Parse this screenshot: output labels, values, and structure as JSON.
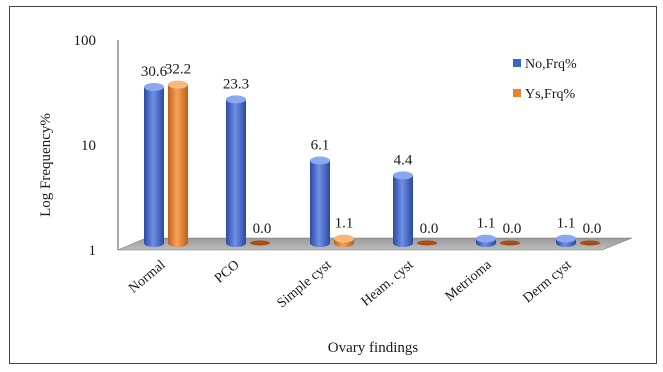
{
  "chart_data": {
    "type": "bar",
    "log_scale": true,
    "xlabel": "Ovary findings",
    "ylabel": "Log Frequency%",
    "ylim": [
      1,
      100
    ],
    "yticks": [
      "1",
      "10",
      "100"
    ],
    "categories": [
      "Normal",
      "PCO",
      "Simple cyst",
      "Heam. cyst",
      "Metrioma",
      "Derm cyst"
    ],
    "series": [
      {
        "name": "No,Frq%",
        "color": "#3f64c8",
        "values": [
          30.6,
          23.3,
          6.1,
          4.4,
          1.1,
          1.1
        ],
        "labels": [
          "30.6",
          "23.3",
          "6.1",
          "4.4",
          "1.1",
          "1.1"
        ]
      },
      {
        "name": "Ys,Frq%",
        "color": "#e8822e",
        "values": [
          32.2,
          0.0,
          1.1,
          0.0,
          0.0,
          0.0
        ],
        "labels": [
          "32.2",
          "0.0",
          "1.1",
          "0.0",
          "0.0",
          "0.0"
        ]
      }
    ],
    "legend_position": "top-right",
    "grid": false
  }
}
